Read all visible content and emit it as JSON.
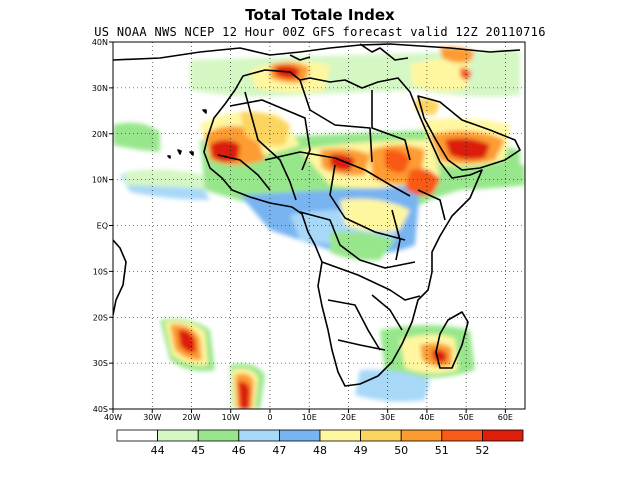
{
  "title": "Total Totale Index",
  "subtitle": "US NOAA NWS NCEP 12 Hour 00Z GFS forecast valid 12Z 20110716",
  "map": {
    "lon_range": [
      -40,
      65
    ],
    "lat_range": [
      -40,
      40
    ],
    "lat_ticks": [
      {
        "value": 40,
        "label": "40N"
      },
      {
        "value": 30,
        "label": "30N"
      },
      {
        "value": 20,
        "label": "20N"
      },
      {
        "value": 10,
        "label": "10N"
      },
      {
        "value": 0,
        "label": "EQ"
      },
      {
        "value": -10,
        "label": "10S"
      },
      {
        "value": -20,
        "label": "20S"
      },
      {
        "value": -30,
        "label": "30S"
      },
      {
        "value": -40,
        "label": "40S"
      }
    ],
    "lon_ticks": [
      {
        "value": -40,
        "label": "40W"
      },
      {
        "value": -30,
        "label": "30W"
      },
      {
        "value": -20,
        "label": "20W"
      },
      {
        "value": -10,
        "label": "10W"
      },
      {
        "value": 0,
        "label": "0"
      },
      {
        "value": 10,
        "label": "10E"
      },
      {
        "value": 20,
        "label": "20E"
      },
      {
        "value": 30,
        "label": "30E"
      },
      {
        "value": 40,
        "label": "40E"
      },
      {
        "value": 50,
        "label": "50E"
      },
      {
        "value": 60,
        "label": "60E"
      }
    ]
  },
  "colorbar": {
    "colors": [
      "#ffffff",
      "#d4f7c4",
      "#98e68c",
      "#a8d8f8",
      "#78b4f0",
      "#fff7a0",
      "#fcd460",
      "#fc9c30",
      "#f85a18",
      "#dc1e0a"
    ],
    "labels": [
      "44",
      "45",
      "46",
      "47",
      "48",
      "49",
      "50",
      "51",
      "52"
    ]
  }
}
